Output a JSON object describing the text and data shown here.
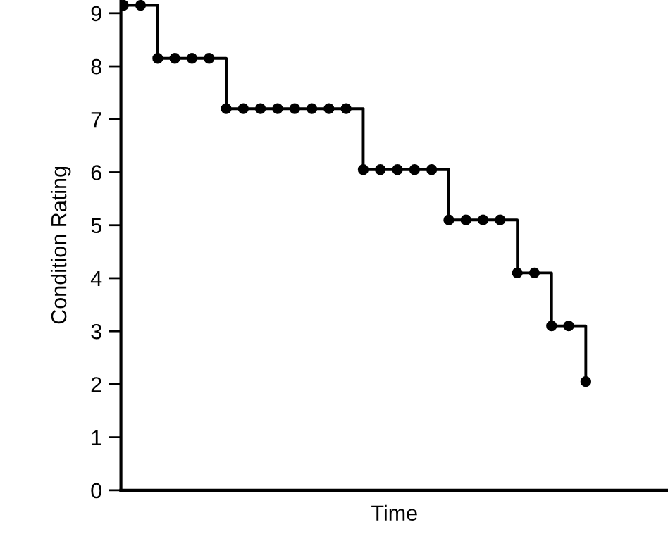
{
  "chart_data": {
    "type": "step",
    "xlabel": "Time",
    "ylabel": "Condition Rating",
    "categories": [
      null,
      null,
      null,
      null,
      null,
      null,
      null,
      null,
      null,
      null,
      null,
      null,
      null,
      null,
      null,
      null,
      null,
      null,
      null,
      null,
      null,
      null,
      null,
      null,
      null,
      null,
      null,
      null
    ],
    "series": [
      {
        "color": "#000000",
        "values": [
          9.15,
          9.15,
          8.15,
          8.15,
          8.15,
          8.15,
          7.2,
          7.2,
          7.2,
          7.2,
          7.2,
          7.2,
          7.2,
          7.2,
          6.05,
          6.05,
          6.05,
          6.05,
          6.05,
          5.1,
          5.1,
          5.1,
          5.1,
          4.1,
          4.1,
          3.1,
          3.1,
          2.05
        ]
      }
    ],
    "ylim": [
      0,
      9.25
    ],
    "yticks": [
      0,
      1,
      2,
      3,
      4,
      5,
      6,
      7,
      8,
      9
    ],
    "marker": "circle",
    "line_style": "solid",
    "grid": false,
    "legend": false
  }
}
